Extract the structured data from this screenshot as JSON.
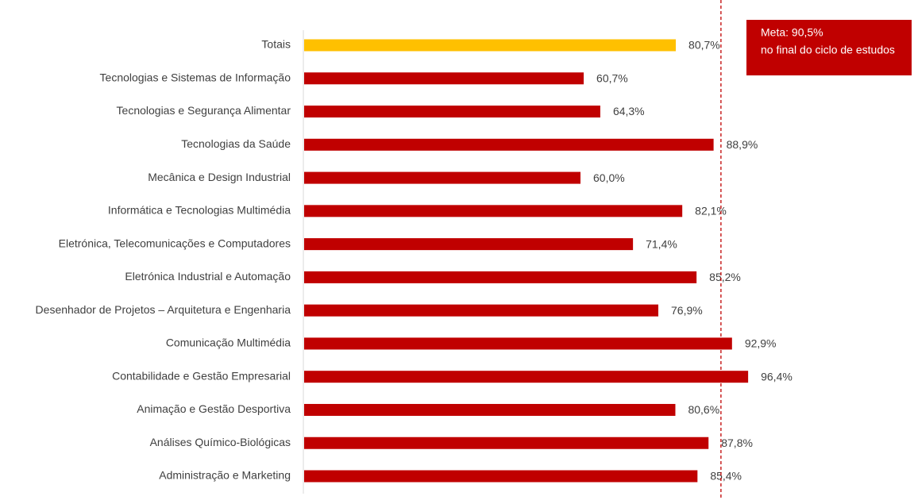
{
  "chart_data": {
    "type": "bar",
    "orientation": "horizontal",
    "categories": [
      "Totais",
      "Tecnologias e Sistemas de Informação",
      "Tecnologias e Segurança Alimentar",
      "Tecnologias da Saúde",
      "Mecânica e Design Industrial",
      "Informática e Tecnologias Multimédia",
      "Eletrónica, Telecomunicações e Computadores",
      "Eletrónica Industrial e Automação",
      "Desenhador de Projetos – Arquitetura e Engenharia",
      "Comunicação Multimédia",
      "Contabilidade e Gestão Empresarial",
      "Animação e Gestão Desportiva",
      "Análises Químico-Biológicas",
      "Administração e Marketing"
    ],
    "values": [
      80.7,
      60.7,
      64.3,
      88.9,
      60.0,
      82.1,
      71.4,
      85.2,
      76.9,
      92.9,
      96.4,
      80.6,
      87.8,
      85.4
    ],
    "value_labels": [
      "80,7%",
      "60,7%",
      "64,3%",
      "88,9%",
      "60,0%",
      "82,1%",
      "71,4%",
      "85,2%",
      "76,9%",
      "92,9%",
      "96,4%",
      "80,6%",
      "87,8%",
      "85,4%"
    ],
    "colors": [
      "#ffc000",
      "#c00000",
      "#c00000",
      "#c00000",
      "#c00000",
      "#c00000",
      "#c00000",
      "#c00000",
      "#c00000",
      "#c00000",
      "#c00000",
      "#c00000",
      "#c00000",
      "#c00000"
    ],
    "xlim": [
      0,
      130
    ],
    "target": {
      "value": 90.5,
      "color": "#c00000",
      "label": [
        "Meta: 90,5%",
        "no final do ciclo de estudos"
      ]
    }
  }
}
